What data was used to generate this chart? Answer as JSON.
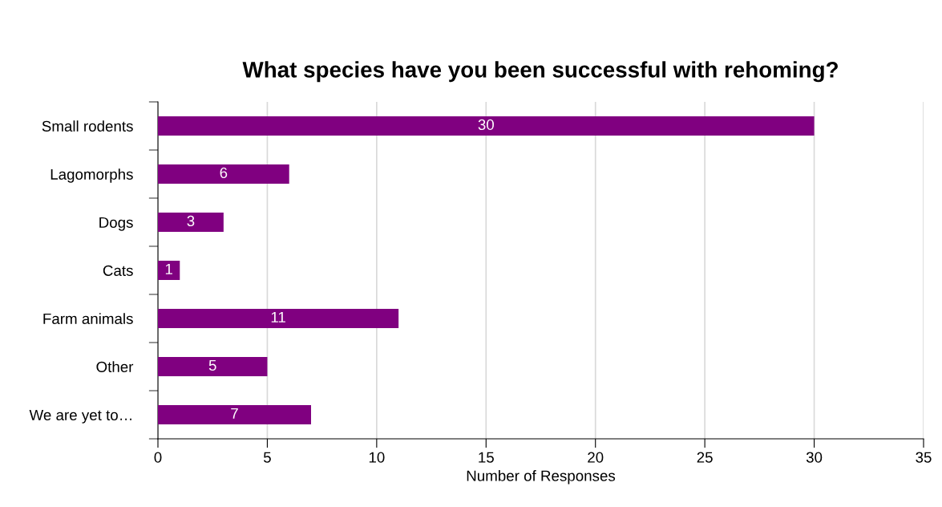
{
  "chart_data": {
    "type": "bar",
    "orientation": "horizontal",
    "title": "What species have you been successful with rehoming?",
    "xlabel": "Number of Responses",
    "categories": [
      "Small rodents",
      "Lagomorphs",
      "Dogs",
      "Cats",
      "Farm animals",
      "Other",
      "We are yet to…"
    ],
    "values": [
      30,
      6,
      3,
      1,
      11,
      5,
      7
    ],
    "color": "#800080",
    "data_labels": true,
    "xlim": [
      0,
      35
    ],
    "xticks": [
      0,
      5,
      10,
      15,
      20,
      25,
      30,
      35
    ],
    "grid": "x",
    "legend": false
  }
}
